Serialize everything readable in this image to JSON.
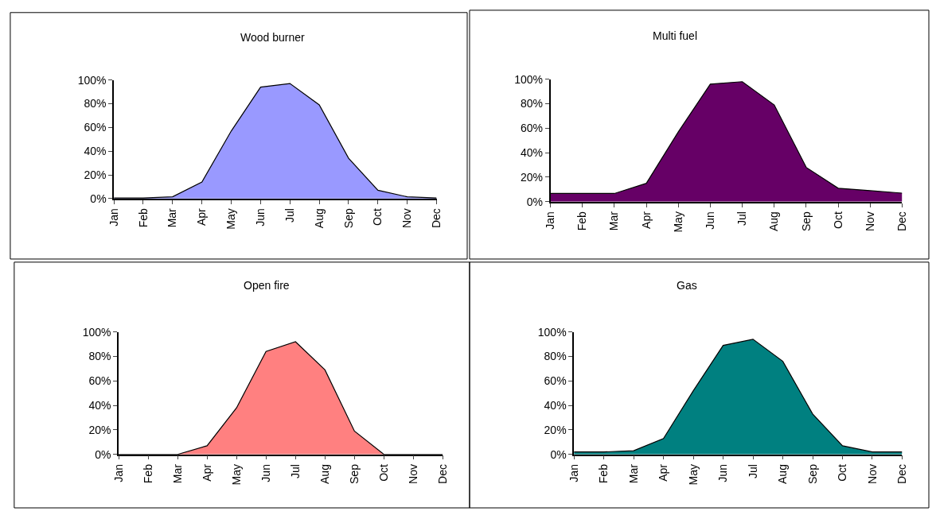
{
  "chart_data": [
    {
      "type": "area",
      "title": "Wood burner",
      "categories": [
        "Jan",
        "Feb",
        "Mar",
        "Apr",
        "May",
        "Jun",
        "Jul",
        "Aug",
        "Sep",
        "Oct",
        "Nov",
        "Dec"
      ],
      "values": [
        0.5,
        0.5,
        1.5,
        14,
        57,
        94,
        97,
        79,
        34,
        7,
        1.5,
        0.5
      ],
      "color": "#9999ff",
      "ylim": [
        0,
        100
      ],
      "yticks": [
        {
          "value": 0,
          "label": "0%"
        },
        {
          "value": 20,
          "label": "20%"
        },
        {
          "value": 40,
          "label": "40%"
        },
        {
          "value": 60,
          "label": "60%"
        },
        {
          "value": 80,
          "label": "80%"
        },
        {
          "value": 100,
          "label": "100%"
        }
      ]
    },
    {
      "type": "area",
      "title": "Multi fuel",
      "categories": [
        "Jan",
        "Feb",
        "Mar",
        "Apr",
        "May",
        "Jun",
        "Jul",
        "Aug",
        "Sep",
        "Oct",
        "Nov",
        "Dec"
      ],
      "values": [
        6.7,
        6.7,
        6.7,
        15,
        57,
        96,
        98,
        79,
        28,
        11,
        9,
        7
      ],
      "color": "#660066",
      "ylim": [
        0,
        100
      ],
      "yticks": [
        {
          "value": 0,
          "label": "0%"
        },
        {
          "value": 20,
          "label": "20%"
        },
        {
          "value": 40,
          "label": "40%"
        },
        {
          "value": 60,
          "label": "60%"
        },
        {
          "value": 80,
          "label": "80%"
        },
        {
          "value": 100,
          "label": "100%"
        }
      ]
    },
    {
      "type": "area",
      "title": "Open fire",
      "categories": [
        "Jan",
        "Feb",
        "Mar",
        "Apr",
        "May",
        "Jun",
        "Jul",
        "Aug",
        "Sep",
        "Oct",
        "Nov",
        "Dec"
      ],
      "values": [
        0,
        0,
        0,
        7,
        38,
        84,
        92,
        69,
        19,
        0,
        0,
        0
      ],
      "color": "#ff8080",
      "ylim": [
        0,
        100
      ],
      "yticks": [
        {
          "value": 0,
          "label": "0%"
        },
        {
          "value": 20,
          "label": "20%"
        },
        {
          "value": 40,
          "label": "40%"
        },
        {
          "value": 60,
          "label": "60%"
        },
        {
          "value": 80,
          "label": "80%"
        },
        {
          "value": 100,
          "label": "100%"
        }
      ]
    },
    {
      "type": "area",
      "title": "Gas",
      "categories": [
        "Jan",
        "Feb",
        "Mar",
        "Apr",
        "May",
        "Jun",
        "Jul",
        "Aug",
        "Sep",
        "Oct",
        "Nov",
        "Dec"
      ],
      "values": [
        2,
        2,
        3,
        13,
        52,
        89,
        94,
        76,
        33,
        7,
        2,
        2
      ],
      "color": "#008080",
      "ylim": [
        0,
        100
      ],
      "yticks": [
        {
          "value": 0,
          "label": "0%"
        },
        {
          "value": 20,
          "label": "20%"
        },
        {
          "value": 40,
          "label": "40%"
        },
        {
          "value": 60,
          "label": "60%"
        },
        {
          "value": 80,
          "label": "80%"
        },
        {
          "value": 100,
          "label": "100%"
        }
      ]
    }
  ]
}
